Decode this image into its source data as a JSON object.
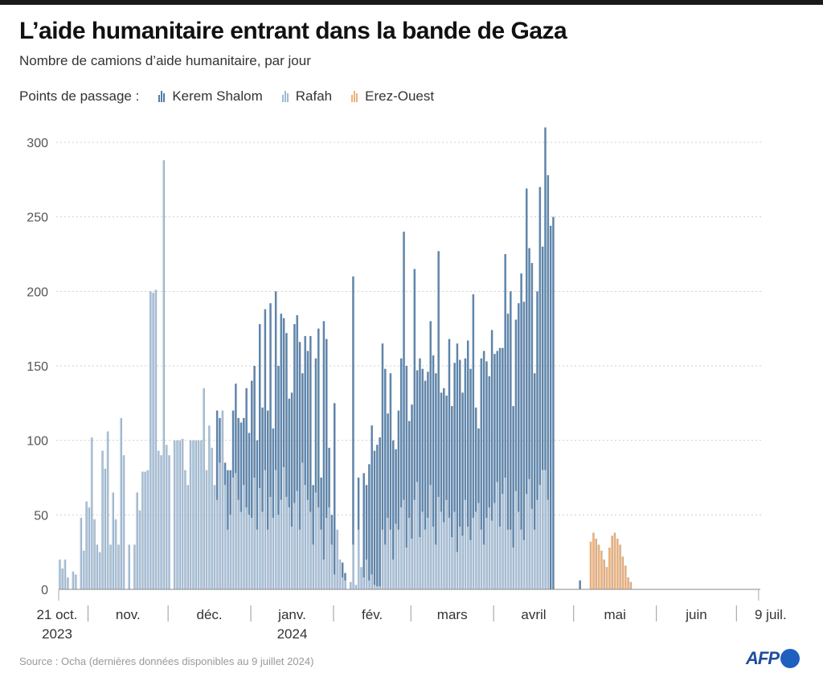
{
  "header": {
    "title": "L’aide humanitaire entrant dans la bande de Gaza",
    "subtitle": "Nombre de camions d’aide humanitaire, par jour"
  },
  "legend": {
    "label": "Points de passage :",
    "items": [
      {
        "name": "Kerem Shalom",
        "color": "#5b86b0"
      },
      {
        "name": "Rafah",
        "color": "#a9c3dd"
      },
      {
        "name": "Erez-Ouest",
        "color": "#f2b27a"
      }
    ]
  },
  "footer": {
    "source": "Source : Ocha (dernières données disponibles au 9 juillet 2024)",
    "logo": "AFP"
  },
  "chart_data": {
    "type": "bar",
    "stacked": true,
    "title": "L’aide humanitaire entrant dans la bande de Gaza",
    "subtitle": "Nombre de camions d’aide humanitaire, par jour",
    "xlabel": "",
    "ylabel": "",
    "ylim": [
      0,
      300
    ],
    "yticks": [
      0,
      50,
      100,
      150,
      200,
      250,
      300
    ],
    "grid": true,
    "legend_position": "top-left",
    "start_date": "2023-10-21",
    "end_date": "2024-07-09",
    "x_tick_labels": [
      {
        "label": "21 oct.",
        "sub": "2023",
        "day_index": 0,
        "type": "start"
      },
      {
        "label": "nov.",
        "sub": "",
        "day_index": 11,
        "type": "month"
      },
      {
        "label": "déc.",
        "sub": "",
        "day_index": 41,
        "type": "month"
      },
      {
        "label": "janv.",
        "sub": "2024",
        "day_index": 72,
        "type": "month"
      },
      {
        "label": "fév.",
        "sub": "",
        "day_index": 103,
        "type": "month"
      },
      {
        "label": "mars",
        "sub": "",
        "day_index": 132,
        "type": "month"
      },
      {
        "label": "avril",
        "sub": "",
        "day_index": 163,
        "type": "month"
      },
      {
        "label": "mai",
        "sub": "",
        "day_index": 193,
        "type": "month"
      },
      {
        "label": "juin",
        "sub": "",
        "day_index": 224,
        "type": "month"
      },
      {
        "label": "9 juil.",
        "sub": "",
        "day_index": 262,
        "type": "end"
      }
    ],
    "month_separators_day_index": [
      11,
      41,
      72,
      103,
      132,
      163,
      193,
      224,
      254
    ],
    "series": [
      {
        "name": "Rafah",
        "color": "#a9c3dd",
        "values": [
          20,
          14,
          20,
          8,
          0,
          12,
          10,
          0,
          48,
          26,
          59,
          55,
          102,
          47,
          30,
          25,
          93,
          81,
          106,
          30,
          65,
          47,
          30,
          115,
          90,
          0,
          30,
          0,
          30,
          65,
          53,
          79,
          79,
          80,
          200,
          199,
          201,
          93,
          90,
          288,
          97,
          90,
          0,
          100,
          100,
          100,
          101,
          80,
          70,
          100,
          100,
          100,
          100,
          100,
          135,
          80,
          110,
          95,
          70,
          60,
          85,
          120,
          70,
          40,
          50,
          75,
          78,
          60,
          52,
          70,
          55,
          50,
          48,
          75,
          40,
          68,
          52,
          80,
          40,
          62,
          48,
          80,
          50,
          60,
          82,
          62,
          55,
          42,
          58,
          66,
          40,
          85,
          70,
          60,
          52,
          30,
          65,
          55,
          40,
          20,
          48,
          55,
          30,
          10,
          40,
          20,
          8,
          6,
          0,
          5,
          30,
          3,
          40,
          15,
          8,
          20,
          6,
          10,
          3,
          2,
          2,
          40,
          30,
          48,
          40,
          20,
          44,
          40,
          55,
          60,
          28,
          48,
          34,
          60,
          72,
          35,
          52,
          40,
          48,
          70,
          42,
          30,
          62,
          52,
          45,
          60,
          48,
          35,
          52,
          25,
          42,
          36,
          60,
          42,
          33,
          48,
          52,
          58,
          40,
          30,
          48,
          55,
          46,
          58,
          72,
          42,
          64,
          75,
          40,
          40,
          28,
          66,
          52,
          40,
          33,
          64,
          74,
          54,
          40,
          60,
          70,
          80,
          80,
          60,
          0,
          0,
          0,
          0,
          0,
          0,
          0,
          0,
          0,
          0,
          0,
          0,
          0,
          0,
          0,
          0,
          0,
          0,
          0,
          0,
          0,
          0,
          0,
          0,
          0,
          0,
          0,
          0,
          0,
          0,
          0,
          0,
          0,
          0,
          0,
          0,
          0,
          0,
          0,
          0,
          0,
          0,
          0,
          0,
          0,
          0,
          0,
          0,
          0,
          0,
          0,
          0,
          0,
          0,
          0,
          0,
          0,
          0,
          0,
          0,
          0,
          0,
          0,
          0,
          0,
          0,
          0,
          0,
          0,
          0,
          0,
          0,
          0,
          0,
          0,
          0,
          0,
          0,
          0,
          0,
          0,
          0,
          0,
          0,
          0,
          0,
          0,
          0,
          0,
          0
        ]
      },
      {
        "name": "Erez-Ouest",
        "color": "#f2b27a",
        "values": [
          0,
          0,
          0,
          0,
          0,
          0,
          0,
          0,
          0,
          0,
          0,
          0,
          0,
          0,
          0,
          0,
          0,
          0,
          0,
          0,
          0,
          0,
          0,
          0,
          0,
          0,
          0,
          0,
          0,
          0,
          0,
          0,
          0,
          0,
          0,
          0,
          0,
          0,
          0,
          0,
          0,
          0,
          0,
          0,
          0,
          0,
          0,
          0,
          0,
          0,
          0,
          0,
          0,
          0,
          0,
          0,
          0,
          0,
          0,
          0,
          0,
          0,
          0,
          0,
          0,
          0,
          0,
          0,
          0,
          0,
          0,
          0,
          0,
          0,
          0,
          0,
          0,
          0,
          0,
          0,
          0,
          0,
          0,
          0,
          0,
          0,
          0,
          0,
          0,
          0,
          0,
          0,
          0,
          0,
          0,
          0,
          0,
          0,
          0,
          0,
          0,
          0,
          0,
          0,
          0,
          0,
          0,
          0,
          0,
          0,
          0,
          0,
          0,
          0,
          0,
          0,
          0,
          0,
          0,
          0,
          0,
          0,
          0,
          0,
          0,
          0,
          0,
          0,
          0,
          0,
          0,
          0,
          0,
          0,
          0,
          0,
          0,
          0,
          0,
          0,
          0,
          0,
          0,
          0,
          0,
          0,
          0,
          0,
          0,
          0,
          0,
          0,
          0,
          0,
          0,
          0,
          0,
          0,
          0,
          0,
          0,
          0,
          0,
          0,
          0,
          0,
          0,
          0,
          0,
          0,
          0,
          0,
          0,
          0,
          0,
          0,
          0,
          0,
          0,
          0,
          0,
          0,
          0,
          0,
          0,
          0,
          0,
          0,
          0,
          0,
          0,
          0,
          0,
          0,
          0,
          0,
          0,
          0,
          0,
          32,
          38,
          34,
          30,
          26,
          20,
          15,
          28,
          36,
          38,
          34,
          30,
          22,
          16,
          8,
          5,
          0,
          0,
          0,
          0,
          0,
          0,
          0,
          0,
          0,
          0,
          0,
          0,
          0,
          0,
          0,
          0,
          0,
          0,
          0,
          0,
          0,
          0,
          0,
          0,
          0,
          0,
          0,
          0,
          0,
          0,
          0,
          0,
          0,
          0,
          0,
          0,
          0,
          0,
          0,
          0,
          0,
          0,
          0,
          0,
          0,
          0,
          0,
          0
        ]
      },
      {
        "name": "Kerem Shalom",
        "color": "#5b86b0",
        "values": [
          0,
          0,
          0,
          0,
          0,
          0,
          0,
          0,
          0,
          0,
          0,
          0,
          0,
          0,
          0,
          0,
          0,
          0,
          0,
          0,
          0,
          0,
          0,
          0,
          0,
          0,
          0,
          0,
          0,
          0,
          0,
          0,
          0,
          0,
          0,
          0,
          0,
          0,
          0,
          0,
          0,
          0,
          0,
          0,
          0,
          0,
          0,
          0,
          0,
          0,
          0,
          0,
          0,
          0,
          0,
          0,
          0,
          0,
          0,
          60,
          30,
          0,
          15,
          40,
          30,
          45,
          60,
          55,
          60,
          45,
          80,
          55,
          92,
          75,
          60,
          110,
          70,
          108,
          80,
          130,
          60,
          120,
          100,
          125,
          100,
          110,
          73,
          90,
          120,
          118,
          126,
          60,
          100,
          100,
          118,
          40,
          90,
          120,
          35,
          160,
          120,
          40,
          20,
          115,
          0,
          0,
          10,
          5,
          0,
          0,
          180,
          0,
          35,
          0,
          70,
          50,
          78,
          100,
          90,
          95,
          100,
          125,
          118,
          70,
          105,
          80,
          50,
          80,
          100,
          180,
          122,
          65,
          90,
          155,
          75,
          120,
          96,
          100,
          98,
          110,
          115,
          115,
          165,
          80,
          90,
          70,
          120,
          88,
          100,
          140,
          112,
          96,
          95,
          125,
          115,
          150,
          70,
          50,
          115,
          130,
          105,
          88,
          128,
          100,
          88,
          120,
          98,
          150,
          145,
          160,
          95,
          115,
          140,
          172,
          160,
          205,
          155,
          165,
          105,
          140,
          200,
          150,
          230,
          218,
          244,
          250,
          0,
          0,
          0,
          0,
          0,
          0,
          0,
          0,
          0,
          6,
          0,
          0,
          0,
          0,
          0,
          0,
          0,
          0,
          0,
          0,
          0,
          0,
          0,
          0,
          0,
          0,
          0,
          0,
          0,
          0,
          0,
          0,
          0,
          0,
          0,
          0,
          0,
          0,
          0,
          0,
          0,
          0,
          0,
          0,
          0,
          0,
          0,
          0,
          0,
          0,
          0,
          0,
          0,
          0,
          0,
          0,
          0,
          0,
          0,
          0,
          0,
          0,
          0,
          0,
          0,
          0,
          0,
          0,
          0,
          0,
          0,
          0,
          0,
          0,
          0,
          0,
          0,
          0,
          0,
          0
        ]
      }
    ]
  }
}
